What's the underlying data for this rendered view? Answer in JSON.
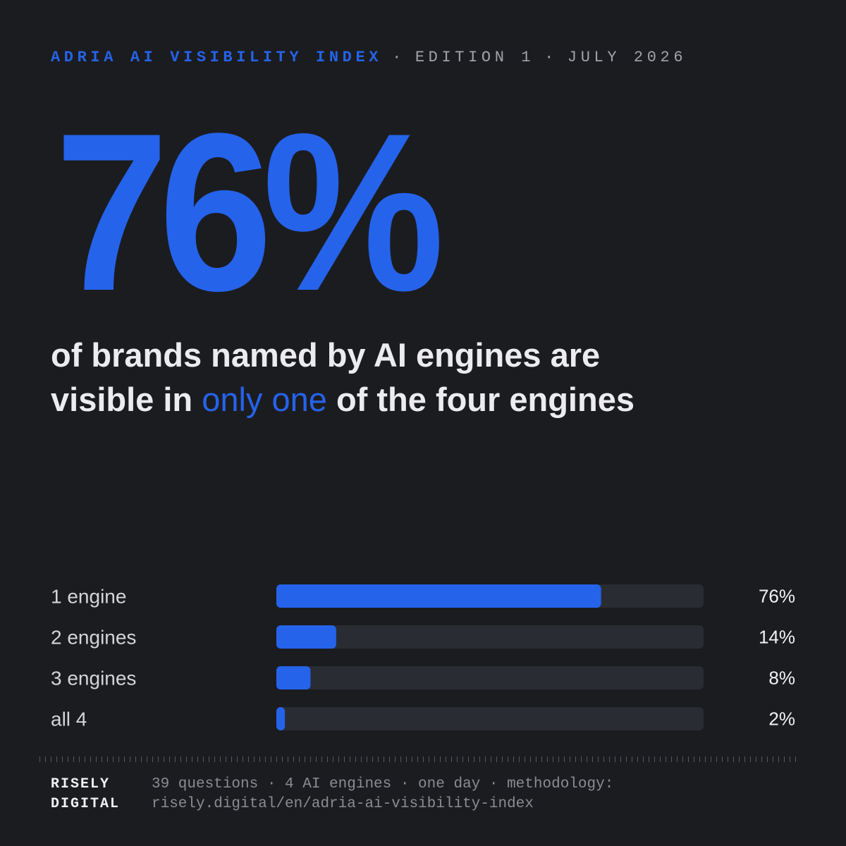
{
  "header": {
    "brand": "ADRIA AI VISIBILITY INDEX",
    "separator": "·",
    "edition": "EDITION 1",
    "date": "JULY 2026"
  },
  "stat": "76%",
  "headline": {
    "line1": "of brands named by AI engines are",
    "before": "visible in",
    "highlight": "only one",
    "after": "of the four engines"
  },
  "chart_data": {
    "type": "bar",
    "orientation": "horizontal",
    "categories": [
      "1 engine",
      "2 engines",
      "3 engines",
      "all 4"
    ],
    "values": [
      76,
      14,
      8,
      2
    ],
    "value_labels": [
      "76%",
      "14%",
      "8%",
      "2%"
    ],
    "xlim": [
      0,
      100
    ],
    "color": "#2563eb",
    "grid": false
  },
  "footer": {
    "brand_line1": "RISELY",
    "brand_line2": "DIGITAL",
    "note_line1": "39 questions · 4 AI engines · one day · methodology:",
    "note_line2": "risely.digital/en/adria-ai-visibility-index"
  }
}
